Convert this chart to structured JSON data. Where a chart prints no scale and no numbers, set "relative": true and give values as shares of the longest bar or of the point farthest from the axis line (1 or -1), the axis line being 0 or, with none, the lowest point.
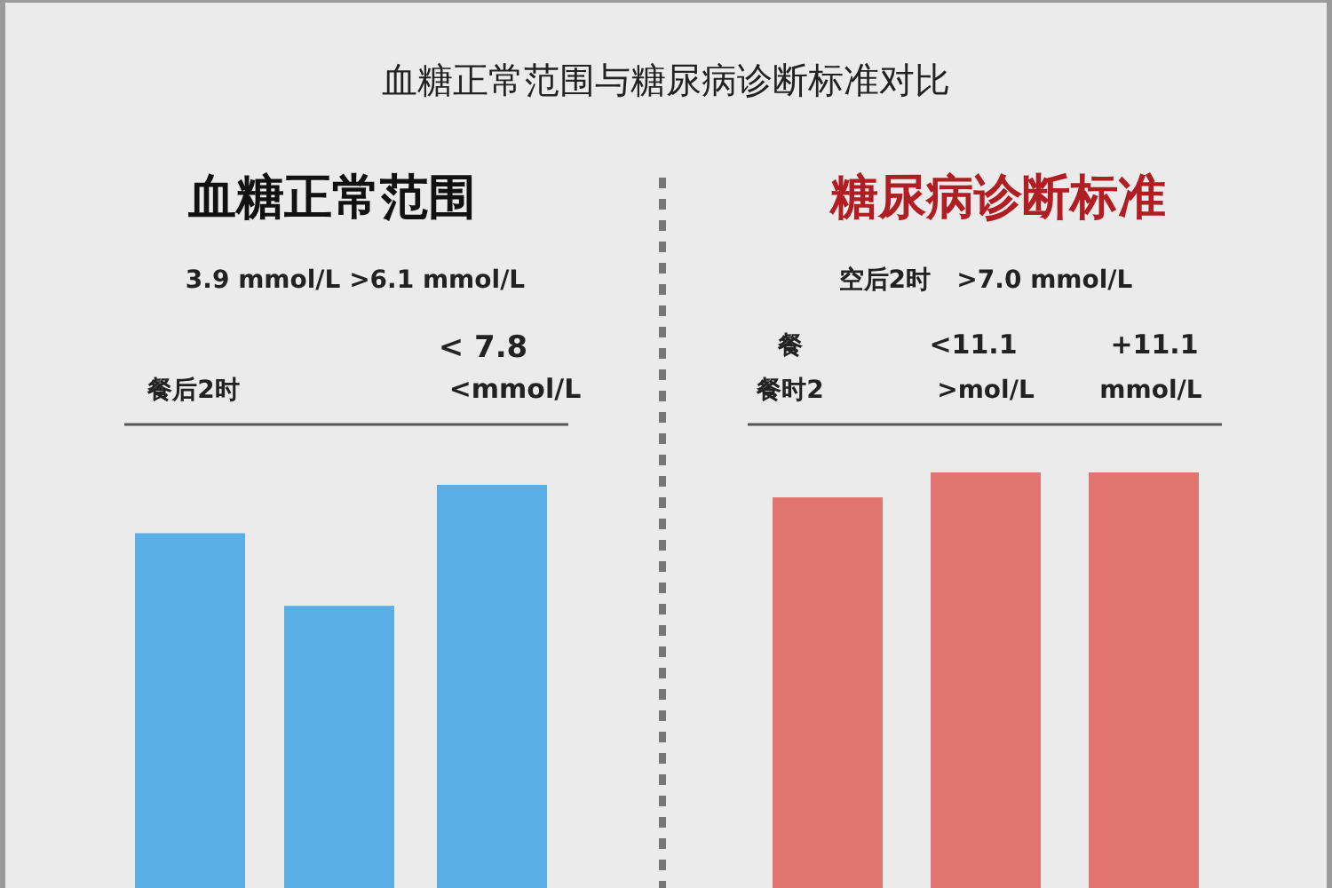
{
  "chart_data": [
    {
      "type": "bar",
      "relative": true,
      "title": "血糖正常范围与糖尿病诊断标准对比",
      "subtitle": "血糖正常范围",
      "categories": [
        null,
        null,
        null
      ],
      "values": [
        0.88,
        0.7,
        1
      ],
      "color": "#5aaee6",
      "annotations": [
        "3.9 mmol/L >6.1 mmol/L",
        "< 7.8",
        "餐后2时",
        "<mmol/L"
      ]
    },
    {
      "type": "bar",
      "relative": true,
      "subtitle": "糖尿病诊断标准",
      "categories": [
        null,
        null,
        null
      ],
      "values": [
        0.94,
        1,
        1
      ],
      "color": "#e27570",
      "annotations": [
        "空后2时   >7.0 mmol/L",
        "餐",
        "<11.1",
        "+11.1",
        "餐时2",
        ">mol/L",
        "mmol/L"
      ]
    }
  ]
}
